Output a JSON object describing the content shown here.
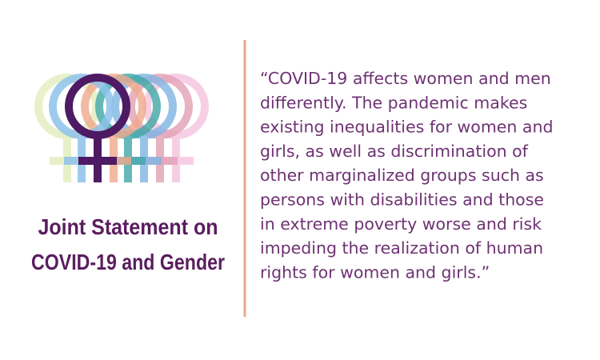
{
  "title": {
    "lines": [
      "Joint Statement on",
      "COVID-19 and Gender"
    ]
  },
  "quote": {
    "lines": [
      "“COVID-19 affects women and men",
      "differently. The pandemic makes",
      "existing inequalities for women and",
      "girls, as well as discrimination of",
      "other marginalized groups such as",
      "persons with disabilities and those",
      "in extreme poverty worse and risk",
      "impeding the realization of human",
      "rights for women and girls.”"
    ]
  }
}
